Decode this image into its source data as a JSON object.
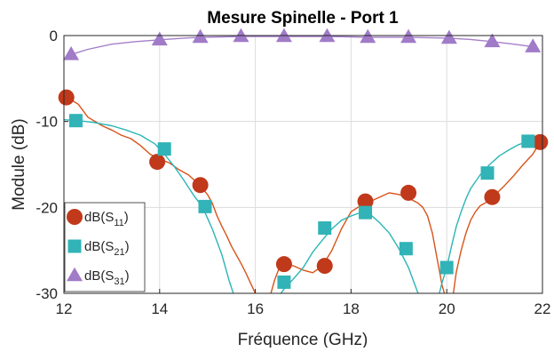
{
  "chart_data": {
    "type": "line",
    "title": "Mesure Spinelle - Port 1",
    "xlabel": "Fréquence (GHz)",
    "ylabel": "Module (dB)",
    "xlim": [
      12,
      22
    ],
    "ylim": [
      -30,
      0
    ],
    "xticks": [
      "12",
      "14",
      "16",
      "18",
      "20",
      "22"
    ],
    "yticks": [
      "0",
      "-10",
      "-20",
      "-30"
    ],
    "grid": true,
    "legend_position": "bottom-left",
    "series": [
      {
        "name": "dB(S11)",
        "label_main": "dB(S",
        "label_sub": "11",
        "label_end": ")",
        "color": "#d95319",
        "marker_color": "#c0391b",
        "marker": "circle",
        "x": [
          12.0,
          12.1,
          12.3,
          12.5,
          12.8,
          13.0,
          13.2,
          13.4,
          13.6,
          13.8,
          14.0,
          14.2,
          14.4,
          14.6,
          14.8,
          15.0,
          15.1,
          15.2,
          15.3,
          15.4,
          15.5,
          15.6,
          15.7,
          15.8,
          15.9,
          16.0,
          16.1,
          16.2,
          16.3,
          16.4,
          16.5,
          16.6,
          16.8,
          17.0,
          17.2,
          17.4,
          17.6,
          17.8,
          18.0,
          18.2,
          18.4,
          18.6,
          18.8,
          19.0,
          19.2,
          19.4,
          19.5,
          19.6,
          19.7,
          19.8,
          19.9,
          20.0,
          20.05,
          20.1,
          20.15,
          20.2,
          20.3,
          20.4,
          20.5,
          20.6,
          20.7,
          20.8,
          21.0,
          21.2,
          21.4,
          21.6,
          21.8,
          21.95
        ],
        "y": [
          -7.2,
          -7.3,
          -8.0,
          -9.5,
          -10.5,
          -11.0,
          -11.6,
          -12.0,
          -12.8,
          -13.8,
          -14.4,
          -14.8,
          -15.6,
          -16.2,
          -17.2,
          -18.5,
          -19.5,
          -21.0,
          -22.2,
          -23.3,
          -24.5,
          -25.5,
          -26.5,
          -27.6,
          -28.8,
          -30.0,
          -31.5,
          -33.0,
          -30.5,
          -28.5,
          -27.0,
          -26.6,
          -26.8,
          -27.3,
          -27.6,
          -26.8,
          -25.0,
          -22.5,
          -20.5,
          -19.8,
          -19.3,
          -18.8,
          -18.3,
          -18.5,
          -18.9,
          -19.5,
          -20.0,
          -21.0,
          -23.0,
          -26.0,
          -29.0,
          -31.0,
          -33.0,
          -31.5,
          -29.5,
          -27.5,
          -25.0,
          -23.0,
          -21.5,
          -20.5,
          -19.8,
          -19.5,
          -18.6,
          -17.5,
          -16.3,
          -15.0,
          -13.8,
          -12.4
        ],
        "markers_x": [
          12.05,
          13.95,
          14.85,
          16.6,
          17.45,
          18.3,
          19.2,
          20.95,
          21.95
        ],
        "markers_y": [
          -7.2,
          -14.7,
          -17.4,
          -26.6,
          -26.8,
          -19.3,
          -18.3,
          -18.8,
          -12.4
        ]
      },
      {
        "name": "dB(S21)",
        "label_main": "dB(S",
        "label_sub": "21",
        "label_end": ")",
        "color": "#2bb5b8",
        "marker_color": "#31b3b7",
        "marker": "square",
        "x": [
          12.0,
          12.3,
          12.6,
          13.0,
          13.3,
          13.6,
          13.9,
          14.1,
          14.3,
          14.5,
          14.7,
          14.9,
          15.1,
          15.3,
          15.45,
          15.6,
          15.7,
          15.8,
          16.2,
          16.4,
          16.6,
          16.8,
          17.0,
          17.2,
          17.4,
          17.6,
          17.8,
          18.0,
          18.2,
          18.4,
          18.6,
          18.8,
          19.0,
          19.2,
          19.4,
          19.5,
          19.6,
          19.7,
          19.8,
          19.9,
          20.0,
          20.1,
          20.2,
          20.3,
          20.4,
          20.5,
          20.7,
          20.9,
          21.1,
          21.3,
          21.5,
          21.7,
          21.9
        ],
        "y": [
          -9.8,
          -9.9,
          -10.1,
          -10.5,
          -11.0,
          -11.6,
          -12.6,
          -13.8,
          -15.2,
          -16.8,
          -18.5,
          -20.0,
          -22.5,
          -25.5,
          -28.5,
          -31.0,
          -33.0,
          -33.0,
          -33.0,
          -31.0,
          -29.5,
          -28.3,
          -27.0,
          -25.2,
          -23.8,
          -22.5,
          -21.5,
          -21.0,
          -20.6,
          -20.8,
          -21.8,
          -23.0,
          -24.8,
          -27.0,
          -30.0,
          -32.0,
          -33.0,
          -33.0,
          -31.0,
          -28.8,
          -27.0,
          -24.5,
          -22.2,
          -20.5,
          -19.0,
          -17.8,
          -16.2,
          -15.0,
          -14.0,
          -13.3,
          -12.7,
          -12.3,
          -12.2
        ],
        "markers_x": [
          12.25,
          14.1,
          14.95,
          16.6,
          17.45,
          18.3,
          19.15,
          20.0,
          20.85,
          21.7
        ],
        "markers_y": [
          -9.9,
          -13.2,
          -19.9,
          -28.7,
          -22.4,
          -20.6,
          -24.8,
          -27.0,
          -16.0,
          -12.3
        ]
      },
      {
        "name": "dB(S31)",
        "label_main": "dB(S",
        "label_sub": "31",
        "label_end": ")",
        "color": "#a57fc9",
        "marker_color": "#a07bc8",
        "marker": "triangle",
        "x": [
          12.15,
          12.5,
          13.0,
          13.5,
          14.0,
          14.5,
          14.85,
          15.3,
          15.7,
          16.2,
          16.6,
          17.0,
          17.5,
          18.0,
          18.35,
          18.8,
          19.2,
          19.6,
          20.05,
          20.5,
          20.95,
          21.4,
          21.8
        ],
        "y": [
          -2.2,
          -1.6,
          -1.0,
          -0.7,
          -0.5,
          -0.3,
          -0.2,
          -0.15,
          -0.1,
          -0.1,
          -0.1,
          -0.1,
          -0.1,
          -0.15,
          -0.2,
          -0.2,
          -0.2,
          -0.25,
          -0.3,
          -0.45,
          -0.7,
          -1.0,
          -1.3
        ],
        "markers_x": [
          12.15,
          14.0,
          14.85,
          15.7,
          16.6,
          17.5,
          18.35,
          19.2,
          20.05,
          20.95,
          21.8
        ],
        "markers_y": [
          -2.2,
          -0.5,
          -0.2,
          -0.1,
          -0.1,
          -0.1,
          -0.2,
          -0.2,
          -0.3,
          -0.7,
          -1.3
        ]
      }
    ]
  }
}
